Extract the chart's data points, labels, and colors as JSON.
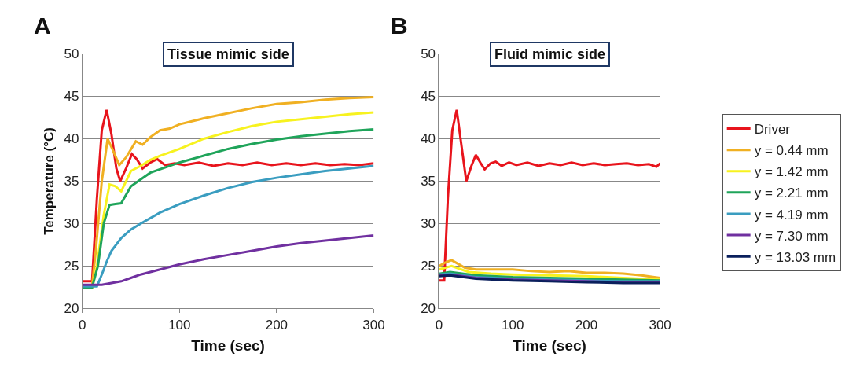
{
  "chart_data": [
    {
      "type": "line",
      "title": "Tissue mimic side",
      "xlabel": "Time (sec)",
      "ylabel": "Temperature (°C)",
      "annotations": [
        "A"
      ],
      "xlim": [
        0,
        300
      ],
      "xticks": [
        0,
        100,
        200,
        300
      ],
      "ylim": [
        20,
        50
      ],
      "yticks": [
        20,
        25,
        30,
        35,
        40,
        45,
        50
      ],
      "grid": "y",
      "legend": false,
      "marker": "none",
      "line_style": "solid",
      "series": [
        {
          "color": "#e8141c",
          "x": [
            0,
            10,
            15,
            20,
            25,
            30,
            35,
            39,
            45,
            51,
            56,
            62,
            70,
            77,
            85,
            95,
            105,
            120,
            135,
            150,
            165,
            180,
            195,
            210,
            225,
            240,
            255,
            270,
            285,
            300
          ],
          "values": [
            23.2,
            23.2,
            33,
            41,
            43.4,
            40.5,
            36.5,
            35.0,
            36.5,
            38.2,
            37.6,
            36.5,
            37.2,
            37.6,
            36.9,
            37.1,
            36.9,
            37.2,
            36.8,
            37.1,
            36.9,
            37.2,
            36.9,
            37.1,
            36.9,
            37.1,
            36.9,
            37.0,
            36.9,
            37.1
          ]
        },
        {
          "color": "#f0b022",
          "x": [
            0,
            10,
            14,
            20,
            26,
            32,
            38,
            45,
            55,
            62,
            70,
            80,
            90,
            100,
            125,
            150,
            175,
            200,
            225,
            250,
            275,
            300
          ],
          "values": [
            22.7,
            22.7,
            27,
            35,
            40.0,
            38.5,
            36.9,
            37.8,
            39.7,
            39.3,
            40.2,
            41.0,
            41.2,
            41.7,
            42.4,
            43.0,
            43.6,
            44.1,
            44.3,
            44.6,
            44.8,
            44.9
          ]
        },
        {
          "color": "#f7f21f",
          "x": [
            0,
            10,
            15,
            22,
            28,
            34,
            40,
            50,
            60,
            70,
            80,
            100,
            125,
            150,
            175,
            200,
            225,
            250,
            275,
            300
          ],
          "values": [
            22.4,
            22.4,
            25,
            31,
            34.6,
            34.4,
            33.8,
            36.2,
            36.8,
            37.5,
            38.0,
            38.8,
            40.0,
            40.8,
            41.5,
            42.0,
            42.3,
            42.6,
            42.9,
            43.1
          ]
        },
        {
          "color": "#1fa45a",
          "x": [
            0,
            10,
            16,
            22,
            28,
            34,
            40,
            50,
            60,
            70,
            85,
            100,
            125,
            150,
            175,
            200,
            225,
            250,
            275,
            300
          ],
          "values": [
            22.5,
            22.5,
            25,
            30,
            32.2,
            32.3,
            32.4,
            34.4,
            35.2,
            36.0,
            36.6,
            37.2,
            38.0,
            38.8,
            39.4,
            39.9,
            40.3,
            40.6,
            40.9,
            41.1
          ]
        },
        {
          "color": "#3a9dc0",
          "x": [
            0,
            15,
            20,
            25,
            30,
            40,
            50,
            60,
            80,
            100,
            125,
            150,
            175,
            200,
            225,
            250,
            275,
            300
          ],
          "values": [
            22.6,
            22.6,
            24.0,
            25.5,
            26.8,
            28.3,
            29.3,
            30.0,
            31.3,
            32.3,
            33.3,
            34.2,
            34.9,
            35.4,
            35.8,
            36.2,
            36.5,
            36.8
          ]
        },
        {
          "color": "#7030a0",
          "x": [
            0,
            20,
            30,
            40,
            50,
            60,
            80,
            100,
            125,
            150,
            175,
            200,
            225,
            250,
            275,
            300
          ],
          "values": [
            22.8,
            22.8,
            23.0,
            23.2,
            23.6,
            24.0,
            24.6,
            25.2,
            25.8,
            26.3,
            26.8,
            27.3,
            27.7,
            28.0,
            28.3,
            28.6
          ]
        }
      ]
    },
    {
      "type": "line",
      "title": "Fluid mimic side",
      "xlabel": "Time (sec)",
      "annotations": [
        "B"
      ],
      "xlim": [
        0,
        300
      ],
      "xticks": [
        0,
        100,
        200,
        300
      ],
      "ylim": [
        20,
        50
      ],
      "yticks": [
        20,
        25,
        30,
        35,
        40,
        45,
        50
      ],
      "grid": "y",
      "legend": "right",
      "marker": "none",
      "line_style": "solid",
      "series": [
        {
          "name": "Driver",
          "color": "#e8141c",
          "x": [
            0,
            7,
            12,
            18,
            24,
            30,
            37,
            44,
            50,
            56,
            62,
            70,
            77,
            85,
            95,
            105,
            120,
            135,
            150,
            165,
            180,
            195,
            210,
            225,
            240,
            255,
            270,
            285,
            295,
            300
          ],
          "values": [
            23.3,
            23.3,
            33,
            41,
            43.4,
            39.5,
            35.0,
            36.8,
            38.1,
            37.2,
            36.4,
            37.1,
            37.3,
            36.8,
            37.2,
            36.9,
            37.2,
            36.8,
            37.1,
            36.9,
            37.2,
            36.9,
            37.1,
            36.9,
            37.0,
            37.1,
            36.9,
            37.0,
            36.7,
            37.1
          ]
        },
        {
          "name": "y = 0.44 mm",
          "color": "#f0b022",
          "x": [
            0,
            8,
            17,
            25,
            35,
            50,
            75,
            100,
            125,
            150,
            175,
            200,
            225,
            250,
            275,
            300
          ],
          "values": [
            25.0,
            25.4,
            25.7,
            25.3,
            24.8,
            24.6,
            24.6,
            24.6,
            24.4,
            24.3,
            24.4,
            24.2,
            24.2,
            24.1,
            23.9,
            23.6
          ]
        },
        {
          "name": "y = 1.42 mm",
          "color": "#f7f21f",
          "x": [
            0,
            17,
            40,
            70,
            100,
            150,
            200,
            250,
            300
          ],
          "values": [
            24.6,
            25.0,
            24.3,
            24.1,
            24.0,
            23.9,
            23.8,
            23.6,
            23.4
          ]
        },
        {
          "name": "y = 2.21 mm",
          "color": "#1fa45a",
          "x": [
            0,
            15,
            50,
            100,
            150,
            200,
            250,
            300
          ],
          "values": [
            24.1,
            24.3,
            23.9,
            23.7,
            23.6,
            23.5,
            23.4,
            23.3
          ]
        },
        {
          "name": "y = 4.19 mm",
          "color": "#3a9dc0",
          "x": [
            0,
            15,
            50,
            100,
            150,
            200,
            250,
            300
          ],
          "values": [
            24.0,
            24.1,
            23.7,
            23.5,
            23.4,
            23.3,
            23.2,
            23.2
          ]
        },
        {
          "name": "y = 7.30 mm",
          "color": "#7030a0",
          "x": [
            0,
            15,
            50,
            100,
            150,
            200,
            250,
            300
          ],
          "values": [
            23.9,
            24.0,
            23.6,
            23.4,
            23.3,
            23.2,
            23.1,
            23.1
          ]
        },
        {
          "name": "y = 13.03 mm",
          "color": "#0a1f5c",
          "x": [
            0,
            15,
            50,
            100,
            150,
            200,
            250,
            300
          ],
          "values": [
            23.8,
            23.9,
            23.5,
            23.3,
            23.2,
            23.1,
            23.0,
            23.0
          ]
        }
      ]
    }
  ]
}
